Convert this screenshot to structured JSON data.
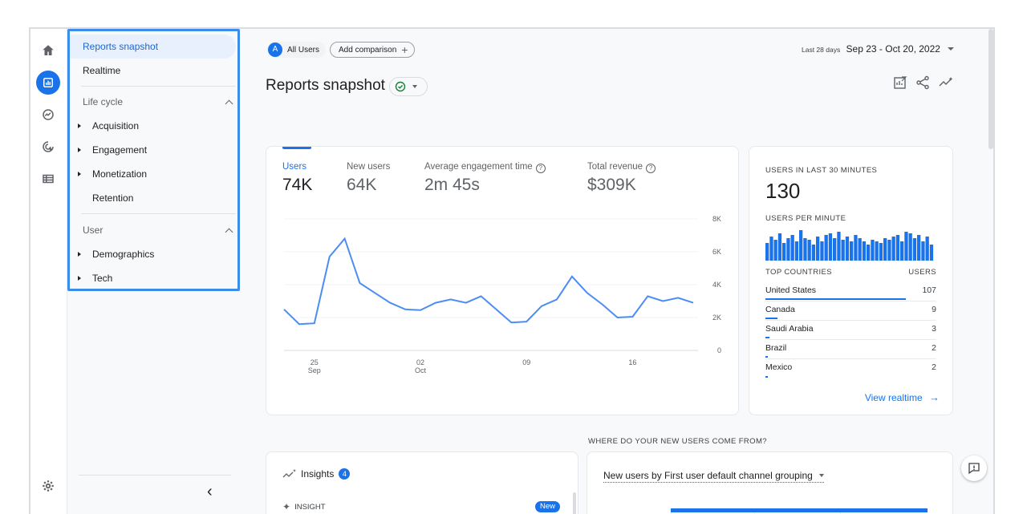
{
  "colors": {
    "accent": "#1a73e8",
    "nav_active_bg": "#e8f0fe",
    "highlight_border": "#3c8dea",
    "line": "#4c8df5"
  },
  "rail": {
    "icons": [
      "home-icon",
      "reports-icon",
      "explore-icon",
      "advertising-icon",
      "configure-icon",
      "settings-icon"
    ]
  },
  "nav": {
    "reports_snapshot": "Reports snapshot",
    "realtime": "Realtime",
    "lifecycle": {
      "title": "Life cycle",
      "items": [
        "Acquisition",
        "Engagement",
        "Monetization",
        "Retention"
      ]
    },
    "user": {
      "title": "User",
      "items": [
        "Demographics",
        "Tech"
      ]
    },
    "collapse_label": "‹"
  },
  "header": {
    "segment_badge": "A",
    "segment": "All Users",
    "add_comparison": "Add comparison",
    "date_prefix": "Last 28 days",
    "date_range": "Sep 23 - Oct 20, 2022",
    "title": "Reports snapshot"
  },
  "metrics": {
    "users_label": "Users",
    "users_value": "74K",
    "new_users_label": "New users",
    "new_users_value": "64K",
    "avg_engagement_label": "Average engagement time",
    "avg_engagement_value": "2m 45s",
    "revenue_label": "Total revenue",
    "revenue_value": "$309K"
  },
  "chart_data": {
    "type": "line",
    "x_tick_labels": [
      [
        "25",
        "Sep"
      ],
      [
        "02",
        "Oct"
      ],
      [
        "09",
        ""
      ],
      [
        "16",
        ""
      ]
    ],
    "y_ticks": [
      "8K",
      "6K",
      "4K",
      "2K",
      "0"
    ],
    "ylim": [
      0,
      8000
    ],
    "series": [
      {
        "values": [
          2500,
          1600,
          1650,
          5700,
          6800,
          4100,
          3500,
          2900,
          2500,
          2450,
          2900,
          3100,
          2900,
          3300,
          2500,
          1700,
          1750,
          2700,
          3100,
          4500,
          3500,
          2800,
          2000,
          2050,
          3300,
          3000,
          3200,
          2900
        ]
      }
    ]
  },
  "realtime": {
    "users_30_label": "USERS IN LAST 30 MINUTES",
    "users_30_value": "130",
    "per_minute_label": "USERS PER MINUTE",
    "per_minute_bars": [
      0.55,
      0.75,
      0.65,
      0.85,
      0.55,
      0.7,
      0.8,
      0.6,
      0.95,
      0.7,
      0.65,
      0.5,
      0.75,
      0.6,
      0.8,
      0.85,
      0.7,
      0.9,
      0.65,
      0.75,
      0.6,
      0.8,
      0.7,
      0.6,
      0.5,
      0.65,
      0.6,
      0.55,
      0.7,
      0.65,
      0.75,
      0.8,
      0.6,
      0.9,
      0.85,
      0.7,
      0.8,
      0.6,
      0.75,
      0.5
    ],
    "top_countries_label": "TOP COUNTRIES",
    "users_col_label": "USERS",
    "countries": [
      {
        "name": "United States",
        "value": "107",
        "share": 0.823
      },
      {
        "name": "Canada",
        "value": "9",
        "share": 0.069
      },
      {
        "name": "Saudi Arabia",
        "value": "3",
        "share": 0.023
      },
      {
        "name": "Brazil",
        "value": "2",
        "share": 0.015
      },
      {
        "name": "Mexico",
        "value": "2",
        "share": 0.015
      }
    ],
    "view_realtime": "View realtime"
  },
  "bottom": {
    "where_label": "WHERE DO YOUR NEW USERS COME FROM?",
    "insights_label": "Insights",
    "insights_count": "4",
    "insight_tag": "INSIGHT",
    "new_badge": "New",
    "channel_selector": "New users by First user default channel grouping"
  }
}
